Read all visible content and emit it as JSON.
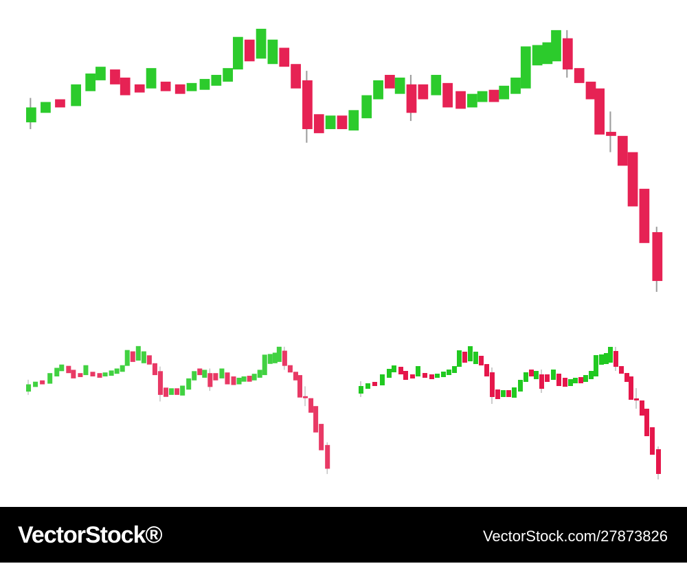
{
  "footer": {
    "logo": "VectorStock®",
    "url": "VectorStock.com/27873826"
  }
}
